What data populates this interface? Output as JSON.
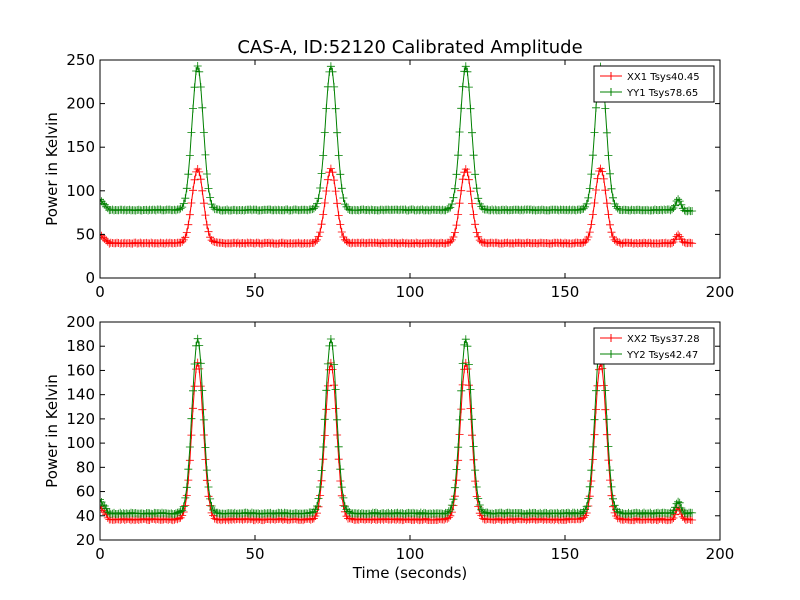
{
  "title": "CAS-A, ID:52120 Calibrated Amplitude",
  "xlabel": "Time (seconds)",
  "colors": {
    "red": "#ff0000",
    "green": "#008000"
  },
  "chart_data": [
    {
      "type": "line",
      "ylabel": "Power in Kelvin",
      "xlim": [
        0,
        200
      ],
      "ylim": [
        0,
        250
      ],
      "xticks": [
        0,
        50,
        100,
        150,
        200
      ],
      "yticks": [
        0,
        50,
        100,
        150,
        200,
        250
      ],
      "legend_position": "top-right",
      "peaks_x": [
        31.5,
        74.5,
        118,
        161.5,
        186.5
      ],
      "series": [
        {
          "name": "XX1 Tsys40.45",
          "color": "#ff0000",
          "baseline": 40,
          "start": 50,
          "end": 40,
          "peaks": [
            125,
            125,
            125,
            126,
            50
          ]
        },
        {
          "name": "YY1 Tsys78.65",
          "color": "#008000",
          "baseline": 78,
          "start": 90,
          "end": 77,
          "peaks": [
            243,
            243,
            243,
            243,
            90
          ]
        }
      ]
    },
    {
      "type": "line",
      "ylabel": "Power in Kelvin",
      "xlim": [
        0,
        200
      ],
      "ylim": [
        20,
        200
      ],
      "xticks": [
        0,
        50,
        100,
        150,
        200
      ],
      "yticks": [
        20,
        40,
        60,
        80,
        100,
        120,
        140,
        160,
        180,
        200
      ],
      "legend_position": "top-right",
      "peaks_x": [
        31.5,
        74.5,
        118,
        161.5,
        186.5
      ],
      "series": [
        {
          "name": "XX2 Tsys37.28",
          "color": "#ff0000",
          "baseline": 37,
          "start": 48,
          "end": 37,
          "peaks": [
            166,
            166,
            166,
            166,
            46
          ]
        },
        {
          "name": "YY2 Tsys42.47",
          "color": "#008000",
          "baseline": 42,
          "start": 53,
          "end": 42,
          "peaks": [
            186,
            186,
            186,
            186,
            52
          ]
        }
      ]
    }
  ]
}
